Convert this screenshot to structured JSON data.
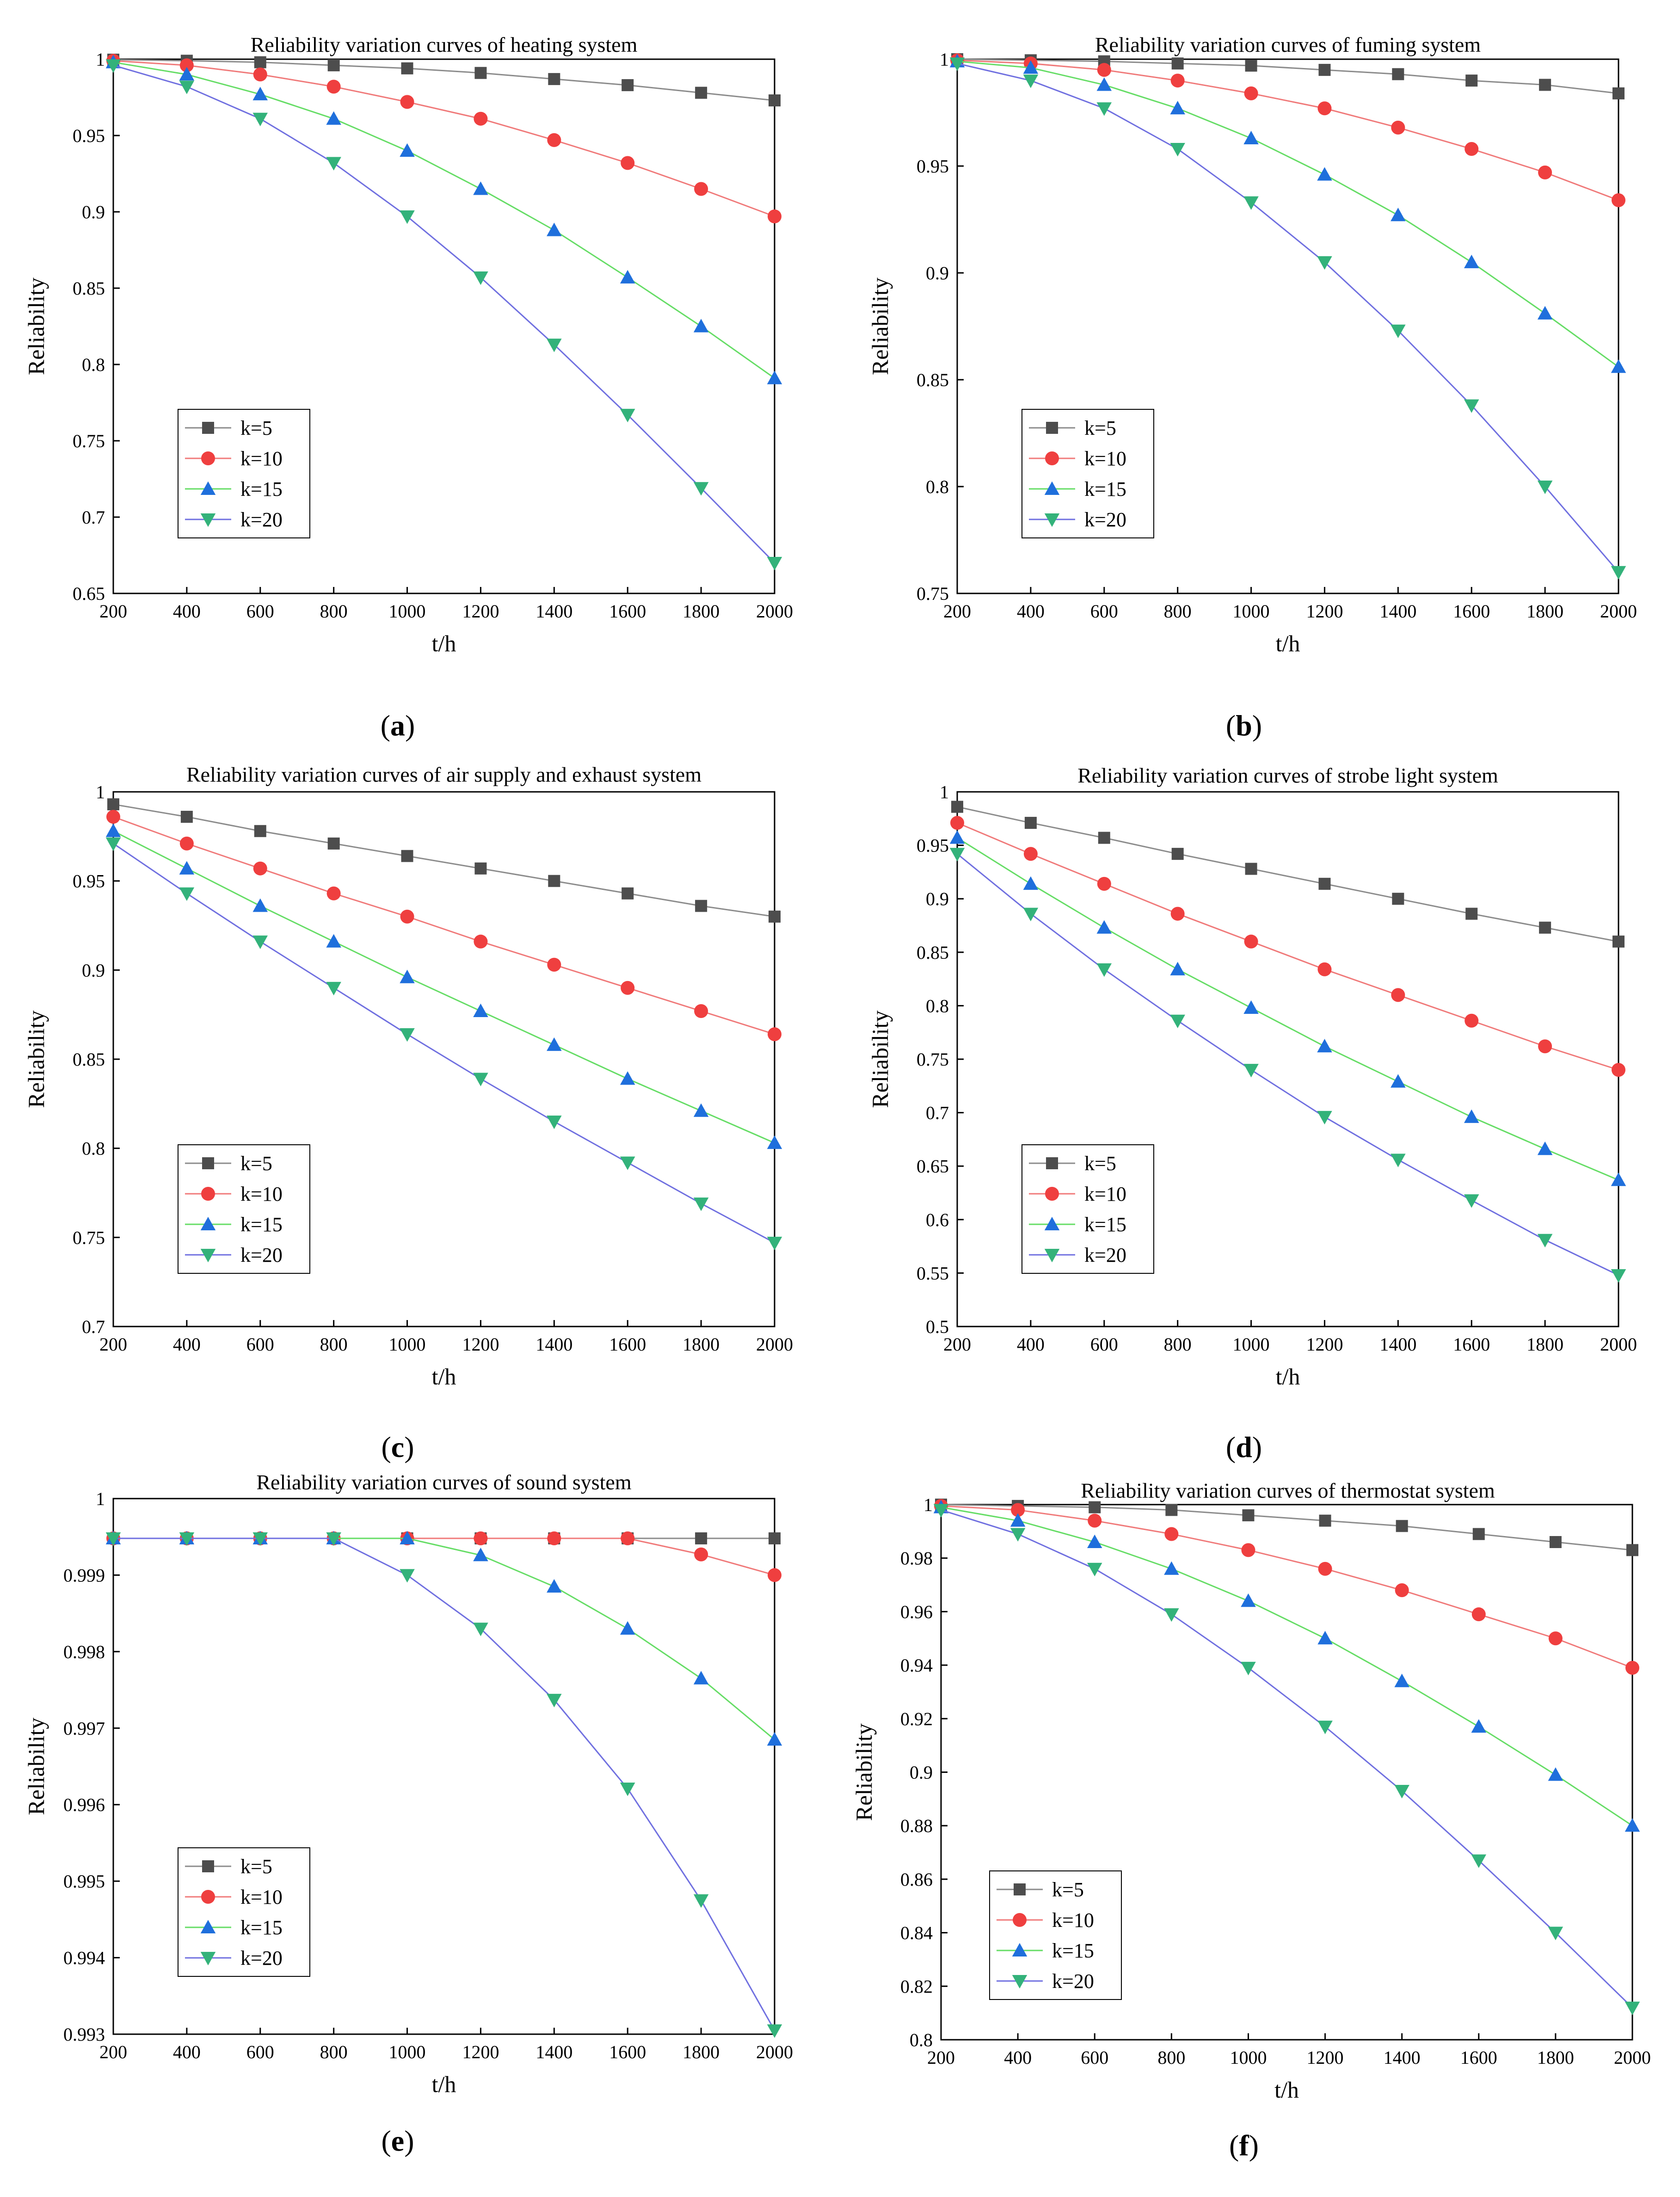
{
  "figure": {
    "legend_labels": [
      "k=5",
      "k=10",
      "k=15",
      "k=20"
    ],
    "series_colors": {
      "k=5": "#4d4d4d",
      "k=10": "#ef3f3f",
      "k=15": "#1f6fdc",
      "k=20": "#33b27a"
    },
    "line_colors": {
      "k=5": "#8c8c8c",
      "k=10": "#f07a7a",
      "k=15": "#66dd66",
      "k=20": "#7070e0"
    },
    "marker_shapes": {
      "k=5": "square",
      "k=10": "circle",
      "k=15": "triangle-up",
      "k=20": "triangle-down"
    }
  },
  "chart_data": [
    {
      "type": "line",
      "panel_label": "(a)",
      "panel_letter": "a",
      "title": "Reliability variation curves of heating system",
      "xlabel": "t/h",
      "ylabel": "Reliability",
      "xlim": [
        200,
        2000
      ],
      "ylim": [
        0.65,
        1
      ],
      "xticks": [
        200,
        400,
        600,
        800,
        1000,
        1200,
        1400,
        1600,
        1800,
        2000
      ],
      "yticks": [
        "0.65",
        "0.7",
        "0.75",
        "0.8",
        "0.85",
        "0.9",
        "0.95",
        "1"
      ],
      "legend_position": "bottom-left",
      "x": [
        200,
        400,
        600,
        800,
        1000,
        1200,
        1400,
        1600,
        1800,
        2000
      ],
      "series": [
        {
          "name": "k=5",
          "values": [
            0.9997,
            0.999,
            0.998,
            0.996,
            0.994,
            0.991,
            0.987,
            0.983,
            0.978,
            0.973
          ]
        },
        {
          "name": "k=10",
          "values": [
            0.999,
            0.996,
            0.99,
            0.982,
            0.972,
            0.961,
            0.947,
            0.932,
            0.915,
            0.897
          ]
        },
        {
          "name": "k=15",
          "values": [
            0.998,
            0.99,
            0.977,
            0.961,
            0.94,
            0.915,
            0.888,
            0.857,
            0.825,
            0.791
          ]
        },
        {
          "name": "k=20",
          "values": [
            0.996,
            0.982,
            0.961,
            0.932,
            0.897,
            0.857,
            0.813,
            0.767,
            0.719,
            0.67
          ]
        }
      ]
    },
    {
      "type": "line",
      "panel_label": "(b)",
      "panel_letter": "b",
      "title": "Reliability variation curves of fuming system",
      "xlabel": "t/h",
      "ylabel": "Reliability",
      "xlim": [
        200,
        2000
      ],
      "ylim": [
        0.75,
        1
      ],
      "xticks": [
        200,
        400,
        600,
        800,
        1000,
        1200,
        1400,
        1600,
        1800,
        2000
      ],
      "yticks": [
        "0.75",
        "0.8",
        "0.85",
        "0.9",
        "0.95",
        "1"
      ],
      "legend_position": "bottom-left",
      "x": [
        200,
        400,
        600,
        800,
        1000,
        1200,
        1400,
        1600,
        1800,
        2000
      ],
      "series": [
        {
          "name": "k=5",
          "values": [
            1.0,
            0.9995,
            0.999,
            0.998,
            0.997,
            0.995,
            0.993,
            0.99,
            0.988,
            0.984
          ]
        },
        {
          "name": "k=10",
          "values": [
            0.9995,
            0.998,
            0.995,
            0.99,
            0.984,
            0.977,
            0.968,
            0.958,
            0.947,
            0.934
          ]
        },
        {
          "name": "k=15",
          "values": [
            0.999,
            0.996,
            0.988,
            0.977,
            0.963,
            0.946,
            0.927,
            0.905,
            0.881,
            0.856
          ]
        },
        {
          "name": "k=20",
          "values": [
            0.998,
            0.99,
            0.977,
            0.958,
            0.933,
            0.905,
            0.873,
            0.838,
            0.8,
            0.76
          ]
        }
      ]
    },
    {
      "type": "line",
      "panel_label": "(c)",
      "panel_letter": "c",
      "title": "Reliability variation curves of  air supply and exhaust system",
      "xlabel": "t/h",
      "ylabel": "Reliability",
      "xlim": [
        200,
        2000
      ],
      "ylim": [
        0.7,
        1
      ],
      "xticks": [
        200,
        400,
        600,
        800,
        1000,
        1200,
        1400,
        1600,
        1800,
        2000
      ],
      "yticks": [
        "0.7",
        "0.75",
        "0.8",
        "0.85",
        "0.9",
        "0.95",
        "1"
      ],
      "legend_position": "bottom-left",
      "x": [
        200,
        400,
        600,
        800,
        1000,
        1200,
        1400,
        1600,
        1800,
        2000
      ],
      "series": [
        {
          "name": "k=5",
          "values": [
            0.993,
            0.986,
            0.978,
            0.971,
            0.964,
            0.957,
            0.95,
            0.943,
            0.936,
            0.93
          ]
        },
        {
          "name": "k=10",
          "values": [
            0.986,
            0.971,
            0.957,
            0.943,
            0.93,
            0.916,
            0.903,
            0.89,
            0.877,
            0.864
          ]
        },
        {
          "name": "k=15",
          "values": [
            0.978,
            0.957,
            0.936,
            0.916,
            0.896,
            0.877,
            0.858,
            0.839,
            0.821,
            0.803
          ]
        },
        {
          "name": "k=20",
          "values": [
            0.971,
            0.943,
            0.916,
            0.89,
            0.864,
            0.839,
            0.815,
            0.792,
            0.769,
            0.747
          ]
        }
      ]
    },
    {
      "type": "line",
      "panel_label": "(d)",
      "panel_letter": "d",
      "title": "Reliability variation curves of strobe light system",
      "xlabel": "t/h",
      "ylabel": "Reliability",
      "xlim": [
        200,
        2000
      ],
      "ylim": [
        0.5,
        1
      ],
      "xticks": [
        200,
        400,
        600,
        800,
        1000,
        1200,
        1400,
        1600,
        1800,
        2000
      ],
      "yticks": [
        "0.5",
        "0.55",
        "0.6",
        "0.65",
        "0.7",
        "0.75",
        "0.8",
        "0.85",
        "0.9",
        "0.95",
        "1"
      ],
      "legend_position": "bottom-left",
      "x": [
        200,
        400,
        600,
        800,
        1000,
        1200,
        1400,
        1600,
        1800,
        2000
      ],
      "series": [
        {
          "name": "k=5",
          "values": [
            0.986,
            0.971,
            0.957,
            0.942,
            0.928,
            0.914,
            0.9,
            0.886,
            0.873,
            0.86
          ]
        },
        {
          "name": "k=10",
          "values": [
            0.971,
            0.942,
            0.914,
            0.886,
            0.86,
            0.834,
            0.81,
            0.786,
            0.762,
            0.74
          ]
        },
        {
          "name": "k=15",
          "values": [
            0.957,
            0.914,
            0.873,
            0.834,
            0.798,
            0.762,
            0.729,
            0.696,
            0.666,
            0.637
          ]
        },
        {
          "name": "k=20",
          "values": [
            0.942,
            0.886,
            0.834,
            0.786,
            0.74,
            0.696,
            0.656,
            0.618,
            0.581,
            0.548
          ]
        }
      ]
    },
    {
      "type": "line",
      "panel_label": "(e)",
      "panel_letter": "e",
      "title": "Reliability variation curves of sound system",
      "xlabel": "t/h",
      "ylabel": "Reliability",
      "xlim": [
        200,
        2000
      ],
      "ylim": [
        0.993,
        1
      ],
      "xticks": [
        200,
        400,
        600,
        800,
        1000,
        1200,
        1400,
        1600,
        1800,
        2000
      ],
      "yticks": [
        "0.993",
        "0.994",
        "0.995",
        "0.996",
        "0.997",
        "0.998",
        "0.999",
        "1"
      ],
      "legend_position": "bottom-left",
      "x": [
        200,
        400,
        600,
        800,
        1000,
        1200,
        1400,
        1600,
        1800,
        2000
      ],
      "series": [
        {
          "name": "k=5",
          "values": [
            0.99948,
            0.99948,
            0.99948,
            0.99948,
            0.99948,
            0.99948,
            0.99948,
            0.99948,
            0.99948,
            0.99948
          ]
        },
        {
          "name": "k=10",
          "values": [
            0.99948,
            0.99948,
            0.99948,
            0.99948,
            0.99948,
            0.99948,
            0.99948,
            0.99948,
            0.99927,
            0.999
          ]
        },
        {
          "name": "k=15",
          "values": [
            0.99948,
            0.99948,
            0.99948,
            0.99948,
            0.99948,
            0.99926,
            0.99885,
            0.9983,
            0.99765,
            0.99685
          ]
        },
        {
          "name": "k=20",
          "values": [
            0.99948,
            0.99948,
            0.99948,
            0.99948,
            0.999,
            0.9983,
            0.99737,
            0.99621,
            0.99475,
            0.99305
          ]
        }
      ]
    },
    {
      "type": "line",
      "panel_label": "(f)",
      "panel_letter": "f",
      "title": "Reliability variation curves of thermostat system",
      "xlabel": "t/h",
      "ylabel": "Reliability",
      "xlim": [
        200,
        2000
      ],
      "ylim": [
        0.8,
        1
      ],
      "xticks": [
        200,
        400,
        600,
        800,
        1000,
        1200,
        1400,
        1600,
        1800,
        2000
      ],
      "yticks": [
        "0.8",
        "0.82",
        "0.84",
        "0.86",
        "0.88",
        "0.9",
        "0.92",
        "0.94",
        "0.96",
        "0.98",
        "1"
      ],
      "legend_position": "bottom-left",
      "x": [
        200,
        400,
        600,
        800,
        1000,
        1200,
        1400,
        1600,
        1800,
        2000
      ],
      "series": [
        {
          "name": "k=5",
          "values": [
            1.0,
            0.9995,
            0.999,
            0.998,
            0.996,
            0.994,
            0.992,
            0.989,
            0.986,
            0.983
          ]
        },
        {
          "name": "k=10",
          "values": [
            0.9995,
            0.998,
            0.994,
            0.989,
            0.983,
            0.976,
            0.968,
            0.959,
            0.95,
            0.939
          ]
        },
        {
          "name": "k=15",
          "values": [
            0.999,
            0.994,
            0.986,
            0.976,
            0.964,
            0.95,
            0.934,
            0.917,
            0.899,
            0.88
          ]
        },
        {
          "name": "k=20",
          "values": [
            0.998,
            0.989,
            0.976,
            0.959,
            0.939,
            0.917,
            0.893,
            0.867,
            0.84,
            0.812
          ]
        }
      ]
    }
  ]
}
